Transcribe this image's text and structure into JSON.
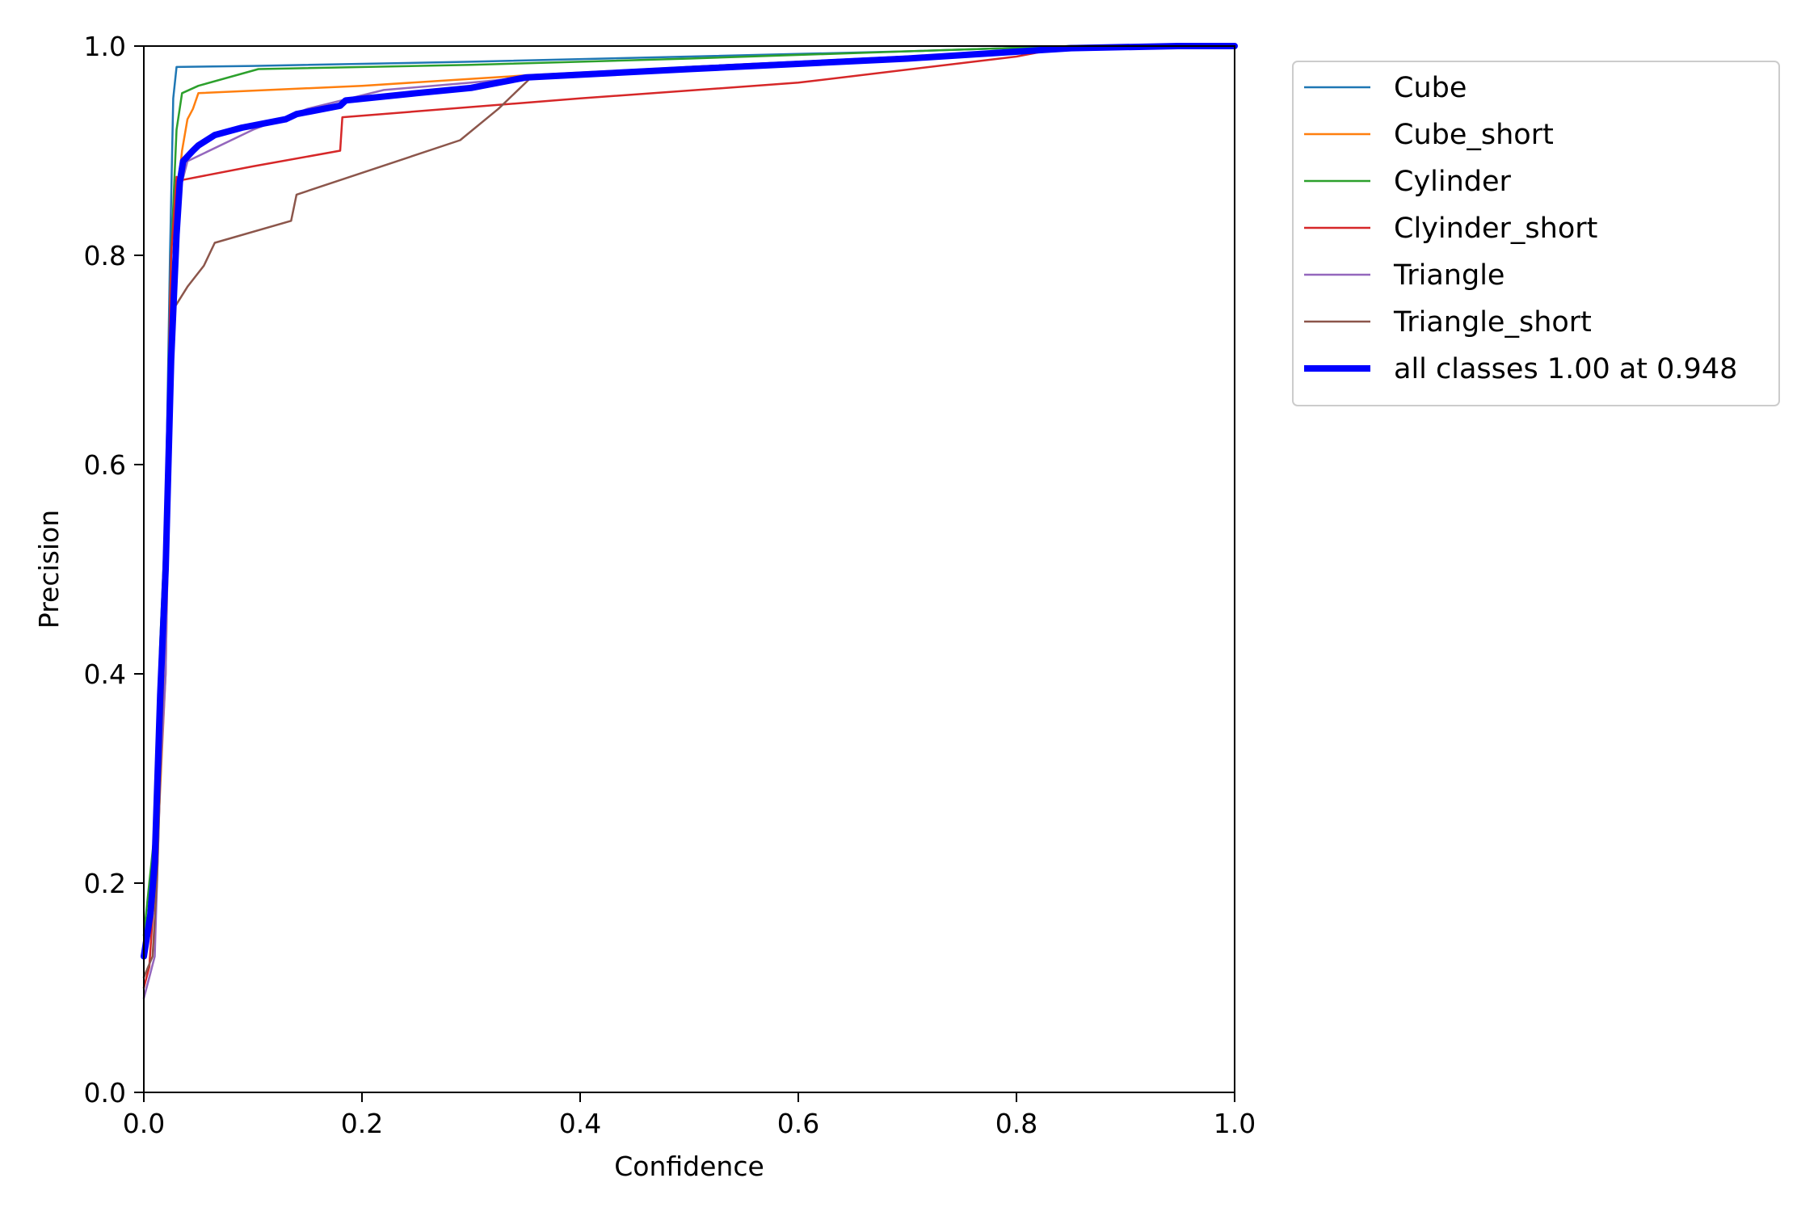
{
  "chart_data": {
    "type": "line",
    "title": "",
    "xlabel": "Confidence",
    "ylabel": "Precision",
    "xlim": [
      0.0,
      1.0
    ],
    "ylim": [
      0.0,
      1.0
    ],
    "xticks": [
      "0.0",
      "0.2",
      "0.4",
      "0.6",
      "0.8",
      "1.0"
    ],
    "yticks": [
      "0.0",
      "0.2",
      "0.4",
      "0.6",
      "0.8",
      "1.0"
    ],
    "grid": false,
    "legend_position": "outside-right-top",
    "series": [
      {
        "name": "Cube",
        "color": "#1f77b4",
        "width": "thin",
        "points": [
          [
            0.0,
            0.14
          ],
          [
            0.01,
            0.2
          ],
          [
            0.015,
            0.35
          ],
          [
            0.02,
            0.55
          ],
          [
            0.024,
            0.8
          ],
          [
            0.027,
            0.95
          ],
          [
            0.03,
            0.98
          ],
          [
            0.1,
            0.981
          ],
          [
            0.3,
            0.985
          ],
          [
            0.5,
            0.99
          ],
          [
            0.7,
            0.995
          ],
          [
            0.85,
            1.0
          ],
          [
            1.0,
            1.0
          ]
        ]
      },
      {
        "name": "Cube_short",
        "color": "#ff7f0e",
        "width": "thin",
        "points": [
          [
            0.0,
            0.13
          ],
          [
            0.01,
            0.18
          ],
          [
            0.02,
            0.4
          ],
          [
            0.025,
            0.7
          ],
          [
            0.03,
            0.85
          ],
          [
            0.035,
            0.9
          ],
          [
            0.04,
            0.93
          ],
          [
            0.045,
            0.94
          ],
          [
            0.05,
            0.955
          ],
          [
            0.2,
            0.962
          ],
          [
            0.35,
            0.972
          ],
          [
            0.5,
            0.98
          ],
          [
            0.7,
            0.99
          ],
          [
            0.9,
            1.0
          ],
          [
            1.0,
            1.0
          ]
        ]
      },
      {
        "name": "Cylinder",
        "color": "#2ca02c",
        "width": "thin",
        "points": [
          [
            0.0,
            0.15
          ],
          [
            0.01,
            0.25
          ],
          [
            0.015,
            0.43
          ],
          [
            0.02,
            0.55
          ],
          [
            0.025,
            0.8
          ],
          [
            0.03,
            0.92
          ],
          [
            0.035,
            0.955
          ],
          [
            0.05,
            0.962
          ],
          [
            0.105,
            0.978
          ],
          [
            0.3,
            0.982
          ],
          [
            0.5,
            0.988
          ],
          [
            0.7,
            0.995
          ],
          [
            0.85,
            1.0
          ],
          [
            1.0,
            1.0
          ]
        ]
      },
      {
        "name": "Clyinder_short",
        "color": "#d62728",
        "width": "thin",
        "points": [
          [
            0.0,
            0.1
          ],
          [
            0.005,
            0.12
          ],
          [
            0.01,
            0.2
          ],
          [
            0.02,
            0.55
          ],
          [
            0.025,
            0.8
          ],
          [
            0.03,
            0.875
          ],
          [
            0.035,
            0.872
          ],
          [
            0.1,
            0.885
          ],
          [
            0.18,
            0.9
          ],
          [
            0.182,
            0.932
          ],
          [
            0.4,
            0.95
          ],
          [
            0.6,
            0.965
          ],
          [
            0.8,
            0.99
          ],
          [
            0.85,
            1.0
          ],
          [
            1.0,
            1.0
          ]
        ]
      },
      {
        "name": "Triangle",
        "color": "#9467bd",
        "width": "thin",
        "points": [
          [
            0.0,
            0.09
          ],
          [
            0.005,
            0.11
          ],
          [
            0.01,
            0.13
          ],
          [
            0.015,
            0.3
          ],
          [
            0.02,
            0.4
          ],
          [
            0.025,
            0.7
          ],
          [
            0.03,
            0.85
          ],
          [
            0.04,
            0.89
          ],
          [
            0.1,
            0.92
          ],
          [
            0.15,
            0.94
          ],
          [
            0.22,
            0.958
          ],
          [
            0.3,
            0.965
          ],
          [
            0.35,
            0.97
          ],
          [
            0.5,
            0.98
          ],
          [
            0.7,
            0.99
          ],
          [
            0.9,
            1.0
          ],
          [
            1.0,
            1.0
          ]
        ]
      },
      {
        "name": "Triangle_short",
        "color": "#8c564b",
        "width": "thin",
        "points": [
          [
            0.0,
            0.11
          ],
          [
            0.008,
            0.13
          ],
          [
            0.012,
            0.2
          ],
          [
            0.018,
            0.4
          ],
          [
            0.023,
            0.65
          ],
          [
            0.028,
            0.75
          ],
          [
            0.04,
            0.77
          ],
          [
            0.055,
            0.79
          ],
          [
            0.065,
            0.812
          ],
          [
            0.135,
            0.833
          ],
          [
            0.14,
            0.858
          ],
          [
            0.29,
            0.91
          ],
          [
            0.325,
            0.94
          ],
          [
            0.355,
            0.97
          ],
          [
            0.5,
            0.98
          ],
          [
            0.7,
            0.99
          ],
          [
            0.9,
            1.0
          ],
          [
            1.0,
            1.0
          ]
        ]
      },
      {
        "name": "all classes 1.00 at 0.948",
        "color": "#0000ff",
        "width": "thick",
        "points": [
          [
            0.0,
            0.13
          ],
          [
            0.006,
            0.17
          ],
          [
            0.01,
            0.22
          ],
          [
            0.015,
            0.38
          ],
          [
            0.02,
            0.5
          ],
          [
            0.025,
            0.7
          ],
          [
            0.03,
            0.82
          ],
          [
            0.033,
            0.87
          ],
          [
            0.036,
            0.89
          ],
          [
            0.045,
            0.9
          ],
          [
            0.05,
            0.905
          ],
          [
            0.065,
            0.915
          ],
          [
            0.09,
            0.922
          ],
          [
            0.13,
            0.93
          ],
          [
            0.14,
            0.935
          ],
          [
            0.18,
            0.943
          ],
          [
            0.185,
            0.948
          ],
          [
            0.25,
            0.955
          ],
          [
            0.3,
            0.96
          ],
          [
            0.35,
            0.97
          ],
          [
            0.5,
            0.978
          ],
          [
            0.7,
            0.988
          ],
          [
            0.85,
            0.998
          ],
          [
            0.948,
            1.0
          ],
          [
            1.0,
            1.0
          ]
        ]
      }
    ]
  }
}
